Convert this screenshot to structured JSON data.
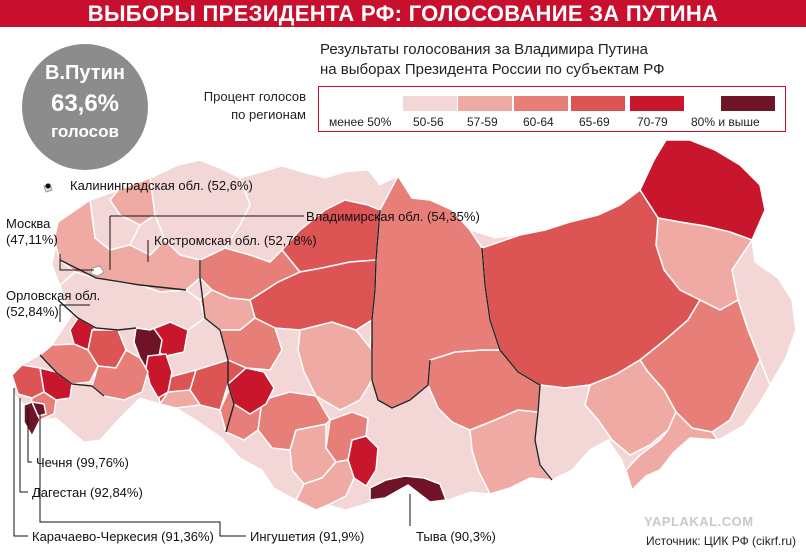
{
  "header": {
    "title": "ВЫБОРЫ ПРЕЗИДЕНТА РФ: ГОЛОСОВАНИЕ ЗА ПУТИНА"
  },
  "badge": {
    "name": "В.Путин",
    "percent": "63,6%",
    "label": "голосов"
  },
  "subtitle": {
    "line1": "Результаты голосования за Владимира Путина",
    "line2": "на выборах Президента России по субъектам РФ"
  },
  "legend": {
    "title_line1": "Процент голосов",
    "title_line2": "по регионам",
    "items": [
      {
        "label": "менее 50%",
        "color": "#ffffff"
      },
      {
        "label": "50-56",
        "color": "#f3d6d6"
      },
      {
        "label": "57-59",
        "color": "#eeaaa3"
      },
      {
        "label": "60-64",
        "color": "#e77f78"
      },
      {
        "label": "65-69",
        "color": "#dc5454"
      },
      {
        "label": "70-79",
        "color": "#c8162c"
      },
      {
        "label": "80% и выше",
        "color": "#6e1426"
      }
    ]
  },
  "callouts": {
    "kaliningrad": "Калининградская обл. (52,6%)",
    "vladimir": "Владимирская обл. (54,35%)",
    "kostroma": "Костромская обл. (52,78%)",
    "moscow_name": "Москва",
    "moscow_value": "(47,11%)",
    "orel_name": "Орловская обл.",
    "orel_value": "(52,84%)",
    "chechnya": "Чечня (99,76%)",
    "dagestan": "Дагестан (92,84%)",
    "kchr": "Карачаево-Черкесия (91,36%)",
    "ingushetia": "Ингушетия (91,9%)",
    "tyva": "Тыва (90,3%)"
  },
  "footer": {
    "watermark": "YAPLAKAL.COM",
    "source": "Источник: ЦИК РФ (cikrf.ru)"
  }
}
